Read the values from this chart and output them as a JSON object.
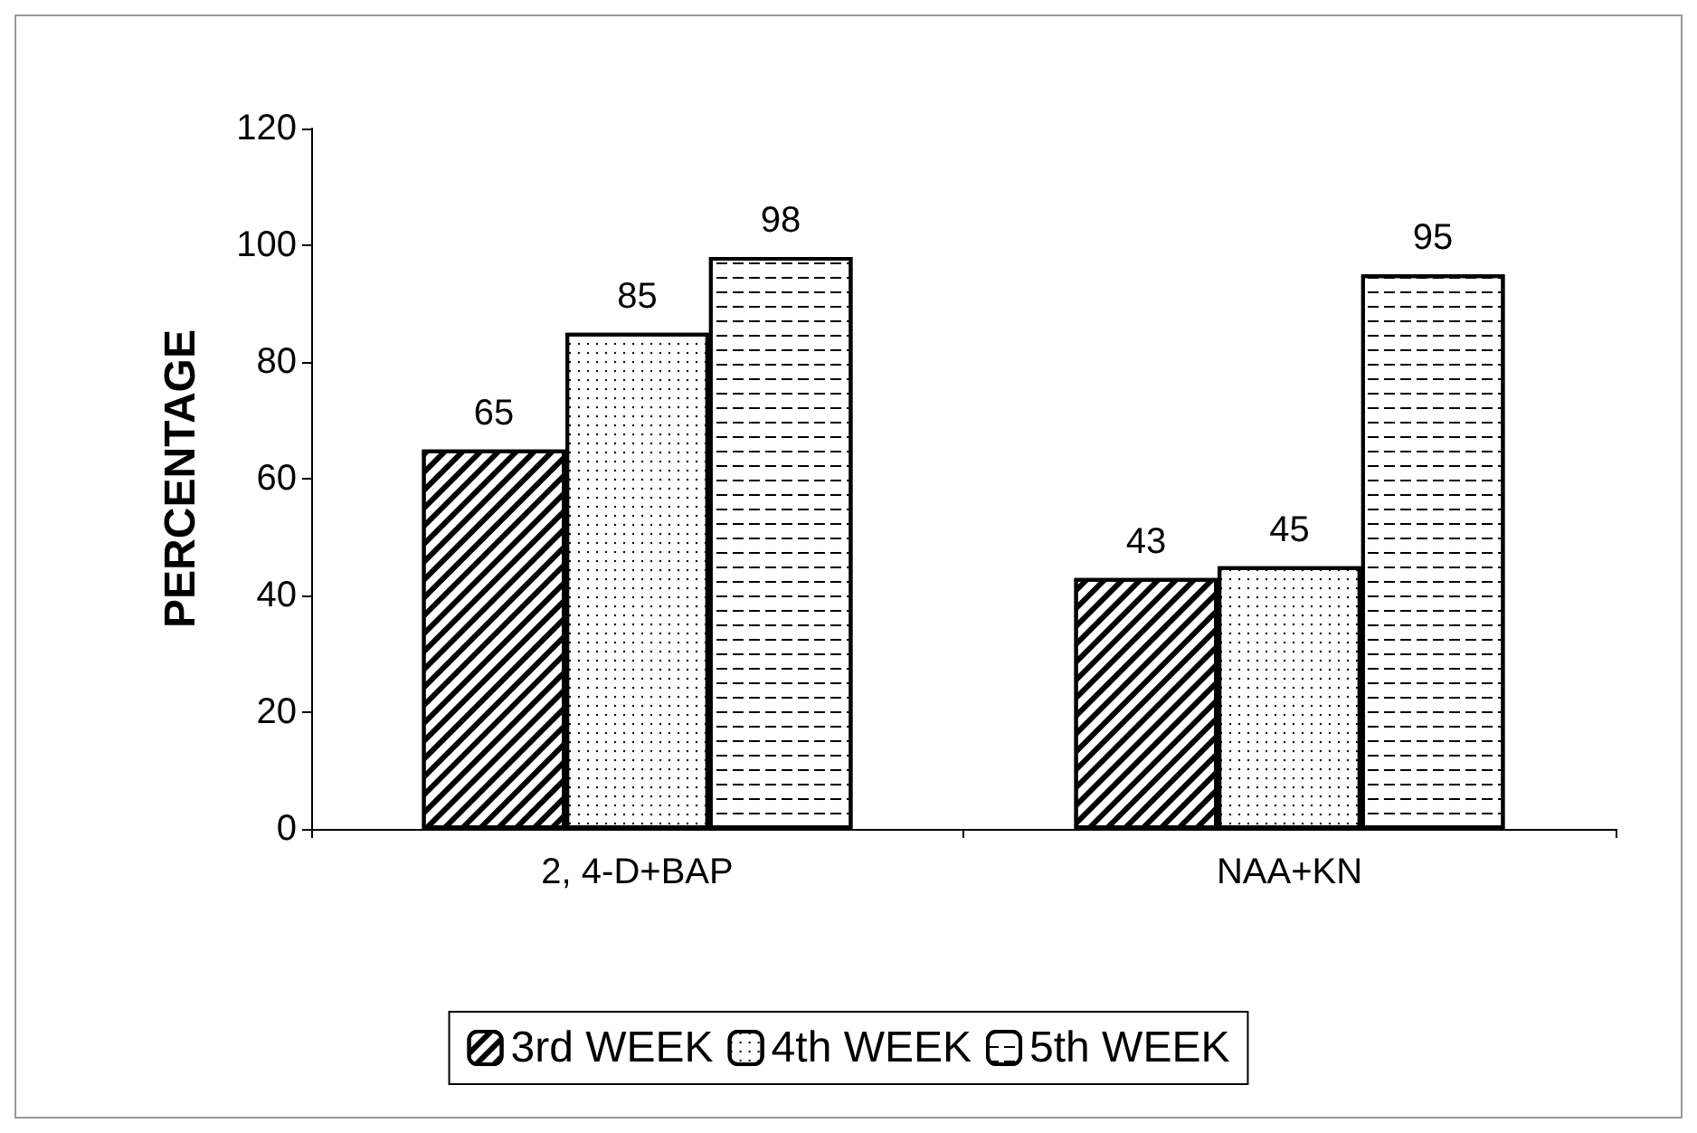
{
  "chart_data": {
    "type": "bar",
    "ylabel": "PERCENTAGE",
    "categories": [
      "2, 4-D+BAP",
      "NAA+KN"
    ],
    "series": [
      {
        "name": "3rd WEEK",
        "color": "#ffffff",
        "values": [
          65,
          43
        ]
      },
      {
        "name": "4th WEEK",
        "color": "#ffffff",
        "values": [
          85,
          45
        ]
      },
      {
        "name": "5th WEEK",
        "color": "#ffffff",
        "values": [
          98,
          95
        ]
      }
    ],
    "ylim": [
      0,
      120
    ],
    "yticks": [
      0,
      20,
      40,
      60,
      80,
      100,
      120
    ],
    "grid": false,
    "legend": "bottom",
    "data_labels": true
  }
}
